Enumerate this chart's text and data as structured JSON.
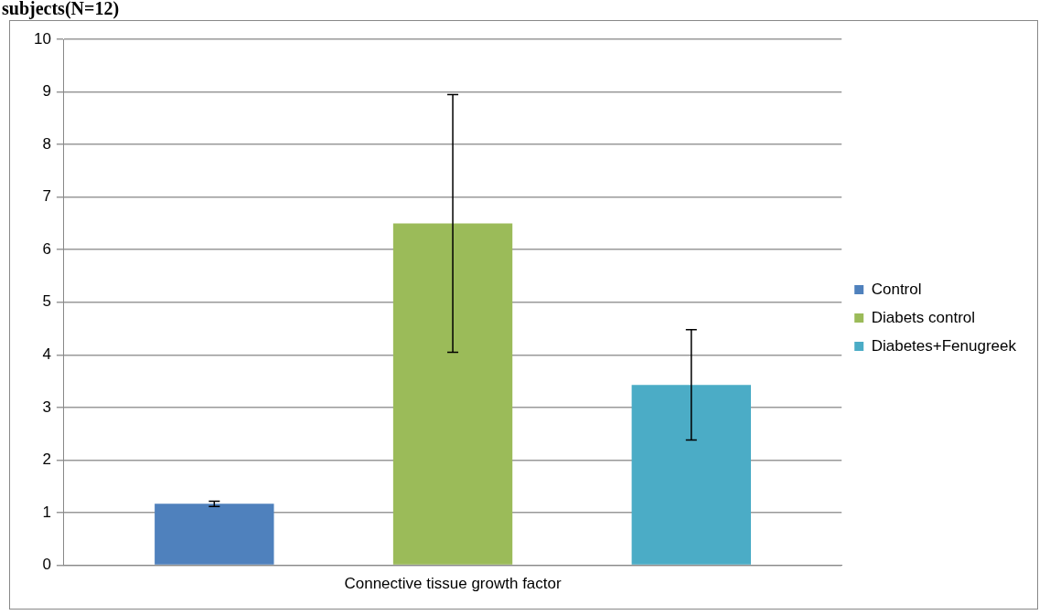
{
  "chart_data": {
    "type": "bar",
    "title": "subjects(N=12)",
    "categories": [
      "Connective tissue growth factor"
    ],
    "series": [
      {
        "name": "Control",
        "color": "#4f81bd",
        "values": [
          1.17
        ],
        "errors": [
          0.05
        ]
      },
      {
        "name": "Diabets control",
        "color": "#9bbb59",
        "values": [
          6.5
        ],
        "errors": [
          2.45
        ]
      },
      {
        "name": "Diabetes+Fenugreek",
        "color": "#4bacc6",
        "values": [
          3.43
        ],
        "errors": [
          1.05
        ]
      }
    ],
    "ylim": [
      0,
      10
    ],
    "yticks": [
      0,
      1,
      2,
      3,
      4,
      5,
      6,
      7,
      8,
      9,
      10
    ],
    "grid": "y",
    "legend": "right"
  }
}
